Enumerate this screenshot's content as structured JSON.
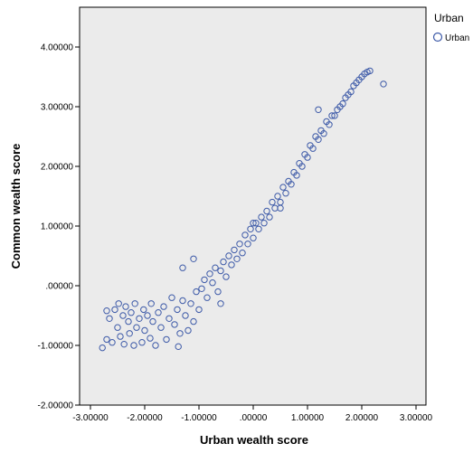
{
  "chart_data": {
    "type": "scatter",
    "title": "",
    "xlabel": "Urban wealth score",
    "ylabel": "Common wealth score",
    "xlim": [
      -3,
      3
    ],
    "ylim": [
      -2,
      4
    ],
    "xticks": [
      "-3.00000",
      "-2.00000",
      "-1.00000",
      ".00000",
      "1.00000",
      "2.00000",
      "3.00000"
    ],
    "yticks": [
      "-2.00000",
      "-1.00000",
      ".00000",
      "1.00000",
      "2.00000",
      "3.00000",
      "4.00000"
    ],
    "grid": false,
    "background_color": "#ebebeb",
    "legend": {
      "title": "Urban",
      "placement": "right",
      "entries": [
        "Urban"
      ]
    },
    "series": [
      {
        "name": "Urban",
        "color": "#3d5aa8",
        "marker": "open-circle",
        "points": [
          [
            -2.78,
            -1.04
          ],
          [
            -2.7,
            -0.9
          ],
          [
            -2.65,
            -0.55
          ],
          [
            -2.6,
            -0.95
          ],
          [
            -2.55,
            -0.4
          ],
          [
            -2.5,
            -0.7
          ],
          [
            -2.48,
            -0.3
          ],
          [
            -2.45,
            -0.85
          ],
          [
            -2.4,
            -0.5
          ],
          [
            -2.38,
            -0.98
          ],
          [
            -2.35,
            -0.35
          ],
          [
            -2.3,
            -0.6
          ],
          [
            -2.28,
            -0.8
          ],
          [
            -2.25,
            -0.45
          ],
          [
            -2.2,
            -1.0
          ],
          [
            -2.18,
            -0.3
          ],
          [
            -2.15,
            -0.7
          ],
          [
            -2.1,
            -0.55
          ],
          [
            -2.05,
            -0.95
          ],
          [
            -2.02,
            -0.4
          ],
          [
            -2.0,
            -0.75
          ],
          [
            -1.95,
            -0.5
          ],
          [
            -1.9,
            -0.88
          ],
          [
            -1.88,
            -0.3
          ],
          [
            -1.85,
            -0.6
          ],
          [
            -1.8,
            -1.0
          ],
          [
            -1.75,
            -0.45
          ],
          [
            -1.7,
            -0.7
          ],
          [
            -1.65,
            -0.35
          ],
          [
            -1.6,
            -0.9
          ],
          [
            -1.55,
            -0.55
          ],
          [
            -1.5,
            -0.2
          ],
          [
            -1.45,
            -0.65
          ],
          [
            -1.4,
            -0.4
          ],
          [
            -1.38,
            -1.02
          ],
          [
            -1.35,
            -0.8
          ],
          [
            -1.3,
            -0.25
          ],
          [
            -1.25,
            -0.5
          ],
          [
            -1.2,
            -0.75
          ],
          [
            -1.15,
            -0.3
          ],
          [
            -1.1,
            -0.6
          ],
          [
            -1.05,
            -0.1
          ],
          [
            -1.0,
            -0.4
          ],
          [
            -0.95,
            -0.05
          ],
          [
            -0.9,
            0.1
          ],
          [
            -0.85,
            -0.2
          ],
          [
            -0.8,
            0.2
          ],
          [
            -0.75,
            0.05
          ],
          [
            -0.7,
            0.3
          ],
          [
            -0.65,
            -0.1
          ],
          [
            -0.6,
            0.25
          ],
          [
            -0.55,
            0.4
          ],
          [
            -0.5,
            0.15
          ],
          [
            -0.45,
            0.5
          ],
          [
            -0.4,
            0.35
          ],
          [
            -0.35,
            0.6
          ],
          [
            -0.3,
            0.45
          ],
          [
            -0.25,
            0.7
          ],
          [
            -0.2,
            0.55
          ],
          [
            -0.15,
            0.85
          ],
          [
            -0.1,
            0.7
          ],
          [
            -0.05,
            0.95
          ],
          [
            0.0,
            0.8
          ],
          [
            0.05,
            1.05
          ],
          [
            0.1,
            0.95
          ],
          [
            0.15,
            1.15
          ],
          [
            0.2,
            1.05
          ],
          [
            0.25,
            1.25
          ],
          [
            0.3,
            1.15
          ],
          [
            0.35,
            1.4
          ],
          [
            0.4,
            1.3
          ],
          [
            0.45,
            1.5
          ],
          [
            0.5,
            1.4
          ],
          [
            0.55,
            1.65
          ],
          [
            0.6,
            1.55
          ],
          [
            0.65,
            1.75
          ],
          [
            0.7,
            1.7
          ],
          [
            0.75,
            1.9
          ],
          [
            0.8,
            1.85
          ],
          [
            0.85,
            2.05
          ],
          [
            0.9,
            2.0
          ],
          [
            0.95,
            2.2
          ],
          [
            1.0,
            2.15
          ],
          [
            1.05,
            2.35
          ],
          [
            1.1,
            2.3
          ],
          [
            1.15,
            2.5
          ],
          [
            1.2,
            2.45
          ],
          [
            1.25,
            2.6
          ],
          [
            1.3,
            2.55
          ],
          [
            1.35,
            2.75
          ],
          [
            1.4,
            2.7
          ],
          [
            1.45,
            2.85
          ],
          [
            1.5,
            2.85
          ],
          [
            1.55,
            2.95
          ],
          [
            1.6,
            3.0
          ],
          [
            1.65,
            3.05
          ],
          [
            1.7,
            3.15
          ],
          [
            1.75,
            3.2
          ],
          [
            1.8,
            3.25
          ],
          [
            1.85,
            3.35
          ],
          [
            1.9,
            3.4
          ],
          [
            1.95,
            3.45
          ],
          [
            2.0,
            3.5
          ],
          [
            2.05,
            3.55
          ],
          [
            2.1,
            3.58
          ],
          [
            2.15,
            3.6
          ],
          [
            2.4,
            3.38
          ],
          [
            1.2,
            2.95
          ],
          [
            -1.3,
            0.3
          ],
          [
            -1.1,
            0.45
          ],
          [
            -0.6,
            -0.3
          ],
          [
            0.0,
            1.05
          ],
          [
            0.5,
            1.3
          ],
          [
            -2.7,
            -0.42
          ]
        ]
      }
    ]
  }
}
